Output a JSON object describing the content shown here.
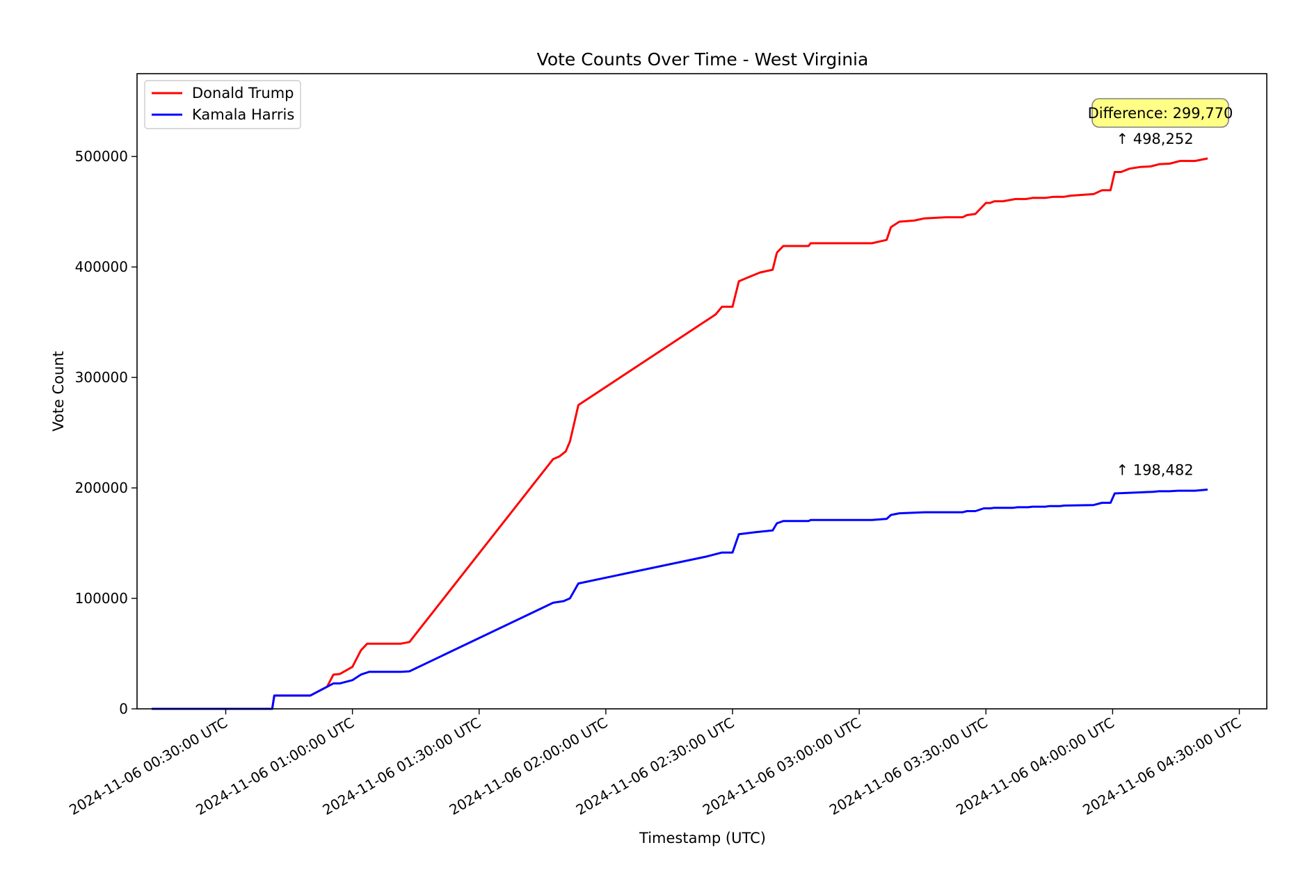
{
  "chart_data": {
    "type": "line",
    "title": "Vote Counts Over Time - West Virginia",
    "xlabel": "Timestamp (UTC)",
    "ylabel": "Vote Count",
    "xlim": [
      "2024-11-06 00:09:00",
      "2024-11-06 04:36:30"
    ],
    "ylim": [
      0,
      575000
    ],
    "x_ticks": [
      "2024-11-06 00:30:00 UTC",
      "2024-11-06 01:00:00 UTC",
      "2024-11-06 01:30:00 UTC",
      "2024-11-06 02:00:00 UTC",
      "2024-11-06 02:30:00 UTC",
      "2024-11-06 03:00:00 UTC",
      "2024-11-06 03:30:00 UTC",
      "2024-11-06 04:00:00 UTC",
      "2024-11-06 04:30:00 UTC"
    ],
    "y_ticks": [
      "0",
      "100000",
      "200000",
      "300000",
      "400000",
      "500000"
    ],
    "y_tick_values": [
      0,
      100000,
      200000,
      300000,
      400000,
      500000
    ],
    "grid": false,
    "legend": {
      "position": "top-left",
      "entries": [
        "Donald Trump",
        "Kamala Harris"
      ]
    },
    "series": [
      {
        "name": "Donald Trump",
        "color": "#ff0000",
        "points": [
          [
            "2024-11-06 00:12:30",
            0
          ],
          [
            "2024-11-06 00:41:00",
            0
          ],
          [
            "2024-11-06 00:41:30",
            12000
          ],
          [
            "2024-11-06 00:50:00",
            12000
          ],
          [
            "2024-11-06 00:54:00",
            20000
          ],
          [
            "2024-11-06 00:55:30",
            31000
          ],
          [
            "2024-11-06 00:57:00",
            31500
          ],
          [
            "2024-11-06 01:00:00",
            38000
          ],
          [
            "2024-11-06 01:02:00",
            53000
          ],
          [
            "2024-11-06 01:03:30",
            59000
          ],
          [
            "2024-11-06 01:11:30",
            59000
          ],
          [
            "2024-11-06 01:13:30",
            60500
          ],
          [
            "2024-11-06 01:47:30",
            226000
          ],
          [
            "2024-11-06 01:49:00",
            228500
          ],
          [
            "2024-11-06 01:50:30",
            233000
          ],
          [
            "2024-11-06 01:51:30",
            242000
          ],
          [
            "2024-11-06 01:53:30",
            275000
          ],
          [
            "2024-11-06 02:26:00",
            357000
          ],
          [
            "2024-11-06 02:27:30",
            364000
          ],
          [
            "2024-11-06 02:30:00",
            364000
          ],
          [
            "2024-11-06 02:31:30",
            387000
          ],
          [
            "2024-11-06 02:33:00",
            389500
          ],
          [
            "2024-11-06 02:36:30",
            395000
          ],
          [
            "2024-11-06 02:39:30",
            397500
          ],
          [
            "2024-11-06 02:40:30",
            413000
          ],
          [
            "2024-11-06 02:42:00",
            419000
          ],
          [
            "2024-11-06 02:48:00",
            419000
          ],
          [
            "2024-11-06 02:48:30",
            421500
          ],
          [
            "2024-11-06 03:03:00",
            421500
          ],
          [
            "2024-11-06 03:06:30",
            424500
          ],
          [
            "2024-11-06 03:07:30",
            436000
          ],
          [
            "2024-11-06 03:09:30",
            441000
          ],
          [
            "2024-11-06 03:13:00",
            442000
          ],
          [
            "2024-11-06 03:15:30",
            444000
          ],
          [
            "2024-11-06 03:20:30",
            445000
          ],
          [
            "2024-11-06 03:24:30",
            445000
          ],
          [
            "2024-11-06 03:25:30",
            447000
          ],
          [
            "2024-11-06 03:27:30",
            448000
          ],
          [
            "2024-11-06 03:30:00",
            458000
          ],
          [
            "2024-11-06 03:31:00",
            458000
          ],
          [
            "2024-11-06 03:32:00",
            459500
          ],
          [
            "2024-11-06 03:34:00",
            459500
          ],
          [
            "2024-11-06 03:37:00",
            461500
          ],
          [
            "2024-11-06 03:39:30",
            461500
          ],
          [
            "2024-11-06 03:41:00",
            462500
          ],
          [
            "2024-11-06 03:44:00",
            462500
          ],
          [
            "2024-11-06 03:46:00",
            463500
          ],
          [
            "2024-11-06 03:48:30",
            463500
          ],
          [
            "2024-11-06 03:50:00",
            464500
          ],
          [
            "2024-11-06 03:53:30",
            465500
          ],
          [
            "2024-11-06 03:55:30",
            466000
          ],
          [
            "2024-11-06 03:57:30",
            469500
          ],
          [
            "2024-11-06 03:59:30",
            469500
          ],
          [
            "2024-11-06 04:00:30",
            486000
          ],
          [
            "2024-11-06 04:02:00",
            486000
          ],
          [
            "2024-11-06 04:04:00",
            489000
          ],
          [
            "2024-11-06 04:06:30",
            490500
          ],
          [
            "2024-11-06 04:09:00",
            491000
          ],
          [
            "2024-11-06 04:11:00",
            493000
          ],
          [
            "2024-11-06 04:13:30",
            493500
          ],
          [
            "2024-11-06 04:16:00",
            496000
          ],
          [
            "2024-11-06 04:19:30",
            496000
          ],
          [
            "2024-11-06 04:22:30",
            498252
          ]
        ]
      },
      {
        "name": "Kamala Harris",
        "color": "#0000ff",
        "points": [
          [
            "2024-11-06 00:12:30",
            0
          ],
          [
            "2024-11-06 00:41:00",
            0
          ],
          [
            "2024-11-06 00:41:30",
            12000
          ],
          [
            "2024-11-06 00:50:00",
            12000
          ],
          [
            "2024-11-06 00:53:00",
            18000
          ],
          [
            "2024-11-06 00:55:30",
            23000
          ],
          [
            "2024-11-06 00:57:00",
            23000
          ],
          [
            "2024-11-06 01:00:00",
            26000
          ],
          [
            "2024-11-06 01:02:00",
            31000
          ],
          [
            "2024-11-06 01:04:00",
            33500
          ],
          [
            "2024-11-06 01:11:30",
            33500
          ],
          [
            "2024-11-06 01:13:30",
            34000
          ],
          [
            "2024-11-06 01:47:30",
            96000
          ],
          [
            "2024-11-06 01:50:00",
            97500
          ],
          [
            "2024-11-06 01:51:30",
            100000
          ],
          [
            "2024-11-06 01:53:30",
            113500
          ],
          [
            "2024-11-06 02:24:00",
            138000
          ],
          [
            "2024-11-06 02:27:30",
            141500
          ],
          [
            "2024-11-06 02:30:00",
            141500
          ],
          [
            "2024-11-06 02:31:30",
            158000
          ],
          [
            "2024-11-06 02:35:30",
            160000
          ],
          [
            "2024-11-06 02:39:30",
            161500
          ],
          [
            "2024-11-06 02:40:30",
            168000
          ],
          [
            "2024-11-06 02:42:00",
            170000
          ],
          [
            "2024-11-06 02:48:00",
            170000
          ],
          [
            "2024-11-06 02:48:30",
            171000
          ],
          [
            "2024-11-06 03:03:00",
            171000
          ],
          [
            "2024-11-06 03:06:30",
            172000
          ],
          [
            "2024-11-06 03:07:30",
            175500
          ],
          [
            "2024-11-06 03:09:30",
            177000
          ],
          [
            "2024-11-06 03:15:30",
            178000
          ],
          [
            "2024-11-06 03:24:30",
            178000
          ],
          [
            "2024-11-06 03:25:30",
            179000
          ],
          [
            "2024-11-06 03:27:30",
            179000
          ],
          [
            "2024-11-06 03:29:30",
            181500
          ],
          [
            "2024-11-06 03:31:00",
            181500
          ],
          [
            "2024-11-06 03:32:00",
            182000
          ],
          [
            "2024-11-06 03:36:30",
            182000
          ],
          [
            "2024-11-06 03:37:30",
            182500
          ],
          [
            "2024-11-06 03:40:00",
            182500
          ],
          [
            "2024-11-06 03:41:00",
            183000
          ],
          [
            "2024-11-06 03:44:00",
            183000
          ],
          [
            "2024-11-06 03:45:00",
            183500
          ],
          [
            "2024-11-06 03:47:30",
            183500
          ],
          [
            "2024-11-06 03:48:30",
            184000
          ],
          [
            "2024-11-06 03:55:30",
            184500
          ],
          [
            "2024-11-06 03:57:30",
            186500
          ],
          [
            "2024-11-06 03:59:30",
            186500
          ],
          [
            "2024-11-06 04:00:30",
            195000
          ],
          [
            "2024-11-06 04:03:30",
            195500
          ],
          [
            "2024-11-06 04:07:00",
            196000
          ],
          [
            "2024-11-06 04:09:30",
            196500
          ],
          [
            "2024-11-06 04:11:00",
            197000
          ],
          [
            "2024-11-06 04:13:30",
            197000
          ],
          [
            "2024-11-06 04:15:30",
            197500
          ],
          [
            "2024-11-06 04:19:30",
            197500
          ],
          [
            "2024-11-06 04:22:30",
            198482
          ]
        ]
      }
    ],
    "annotations": [
      {
        "text": "↑ 498,252",
        "series": "Donald Trump"
      },
      {
        "text": "↑ 198,482",
        "series": "Kamala Harris"
      }
    ],
    "difference_box": {
      "text": "Difference: 299,770",
      "background": "#ffff80",
      "border": "#808080"
    }
  }
}
